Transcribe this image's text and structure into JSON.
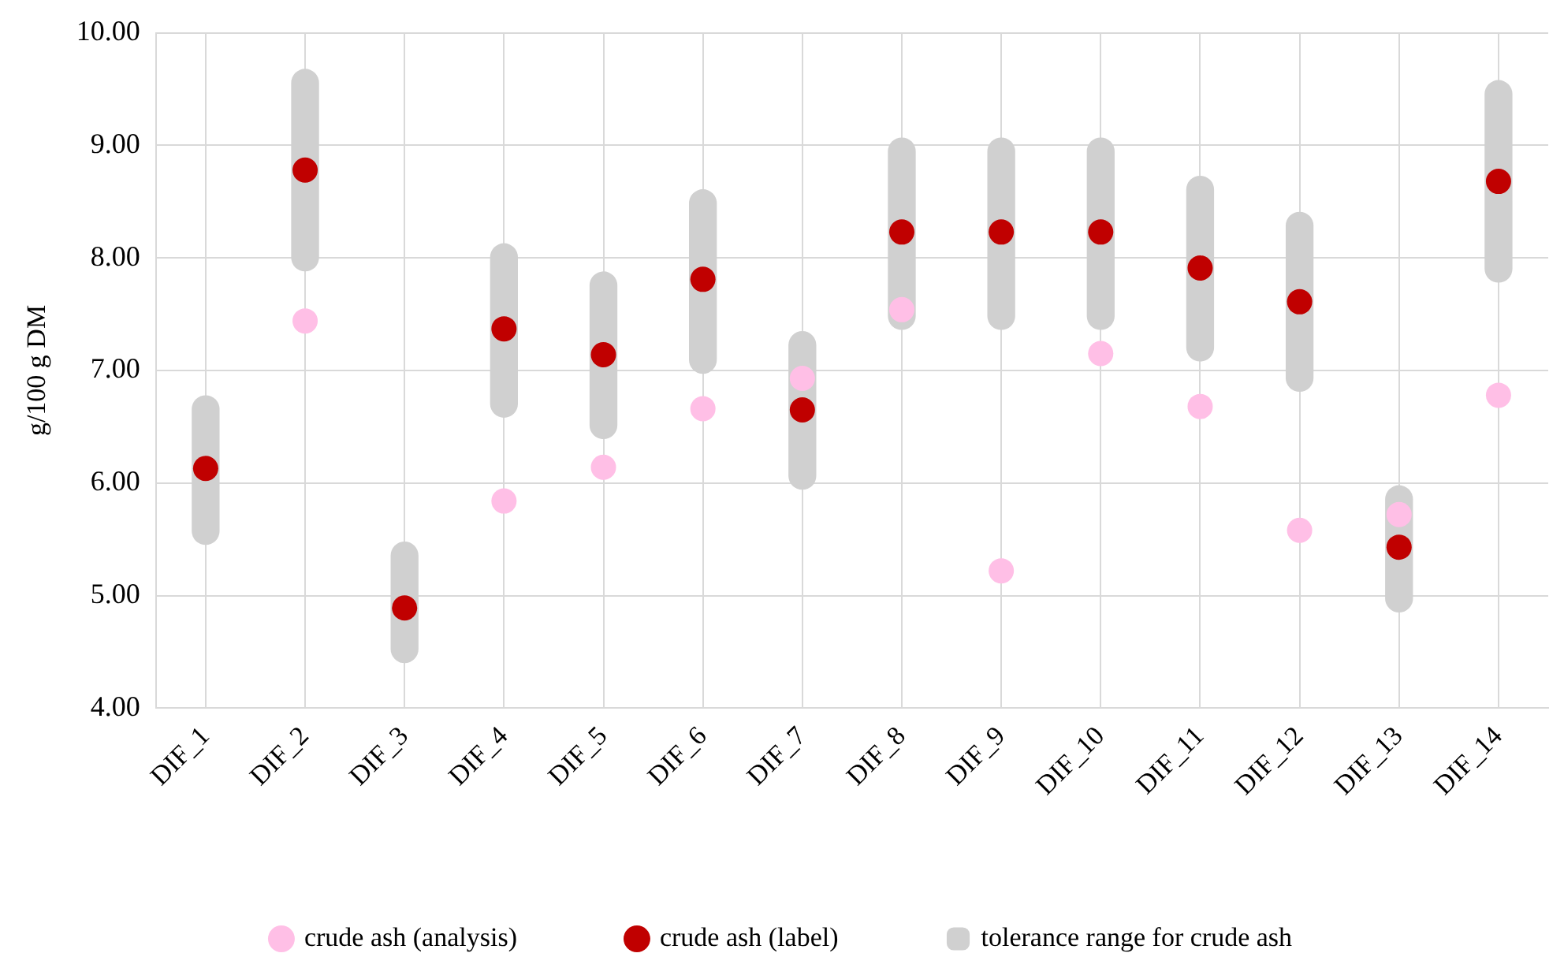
{
  "chart_data": {
    "type": "bar",
    "ylabel": "g/100 g DM",
    "categories": [
      "DIF_1",
      "DIF_2",
      "DIF_3",
      "DIF_4",
      "DIF_5",
      "DIF_6",
      "DIF_7",
      "DIF_8",
      "DIF_9",
      "DIF_10",
      "DIF_11",
      "DIF_12",
      "DIF_13",
      "DIF_14"
    ],
    "series": [
      {
        "name": "crude ash (analysis)",
        "type": "scatter",
        "color": "#ffbfe6",
        "x": [
          "DIF_1",
          "DIF_2",
          "DIF_3",
          "DIF_4",
          "DIF_5",
          "DIF_6",
          "DIF_7",
          "DIF_8",
          "DIF_9",
          "DIF_10",
          "DIF_11",
          "DIF_12",
          "DIF_13",
          "DIF_14"
        ],
        "values": [
          null,
          7.44,
          null,
          5.84,
          6.14,
          6.66,
          6.93,
          7.54,
          5.22,
          7.15,
          6.68,
          5.58,
          5.72,
          6.78
        ]
      },
      {
        "name": "crude ash (label)",
        "type": "scatter",
        "color": "#c00000",
        "x": [
          "DIF_1",
          "DIF_2",
          "DIF_3",
          "DIF_4",
          "DIF_5",
          "DIF_6",
          "DIF_7",
          "DIF_8",
          "DIF_9",
          "DIF_10",
          "DIF_11",
          "DIF_12",
          "DIF_13",
          "DIF_14"
        ],
        "values": [
          6.13,
          8.78,
          4.89,
          7.37,
          7.14,
          7.81,
          6.65,
          8.23,
          8.23,
          8.23,
          7.91,
          7.61,
          5.43,
          8.68
        ]
      },
      {
        "name": "tolerance range for crude ash",
        "color": "#d0d0d0",
        "base": [
          5.45,
          7.88,
          4.4,
          6.58,
          6.39,
          6.97,
          5.94,
          7.36,
          7.36,
          7.36,
          7.08,
          6.81,
          4.85,
          7.78
        ],
        "values": [
          1.33,
          1.8,
          1.08,
          1.55,
          1.49,
          1.64,
          1.41,
          1.71,
          1.71,
          1.71,
          1.65,
          1.6,
          1.13,
          1.8
        ]
      }
    ],
    "ylim": [
      4,
      10
    ],
    "yticks": [
      {
        "value": 4,
        "label": "4.00"
      },
      {
        "value": 5,
        "label": "5.00"
      },
      {
        "value": 6,
        "label": "6.00"
      },
      {
        "value": 7,
        "label": "7.00"
      },
      {
        "value": 8,
        "label": "8.00"
      },
      {
        "value": 9,
        "label": "9.00"
      },
      {
        "value": 10,
        "label": "10.00"
      }
    ],
    "grid": true,
    "legend": "bottom",
    "marker": "circle"
  }
}
